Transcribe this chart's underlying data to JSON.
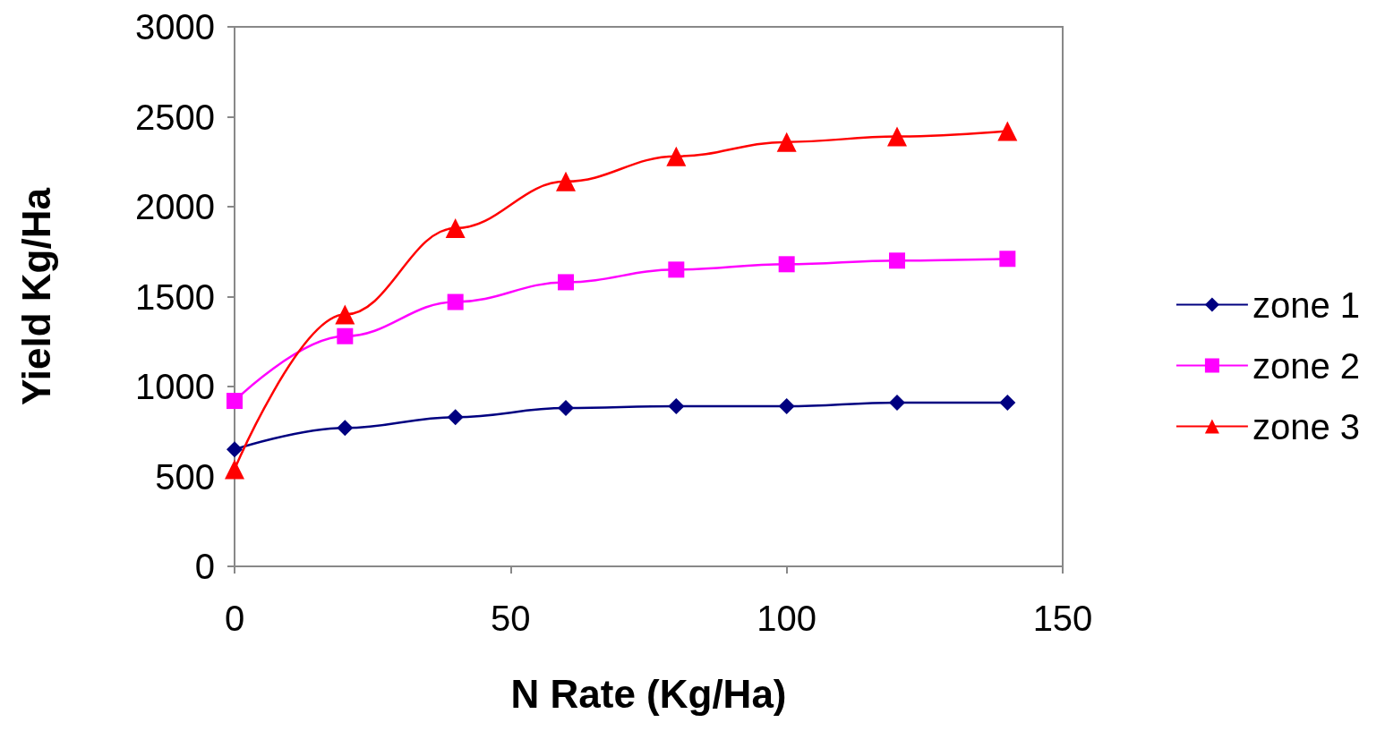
{
  "chart_data": {
    "type": "line",
    "xlabel": "N Rate (Kg/Ha)",
    "ylabel": "Yield Kg/Ha",
    "x": [
      0,
      20,
      40,
      60,
      80,
      100,
      120,
      140
    ],
    "series": [
      {
        "name": "zone 1",
        "color": "#000080",
        "marker": "diamond",
        "values": [
          650,
          770,
          830,
          880,
          890,
          890,
          910,
          910
        ]
      },
      {
        "name": "zone 2",
        "color": "#ff00ff",
        "marker": "square",
        "values": [
          920,
          1280,
          1470,
          1580,
          1650,
          1680,
          1700,
          1710
        ]
      },
      {
        "name": "zone 3",
        "color": "#ff0000",
        "marker": "triangle",
        "values": [
          540,
          1400,
          1880,
          2140,
          2280,
          2360,
          2390,
          2420
        ]
      }
    ],
    "xlim": [
      0,
      150
    ],
    "xticks": [
      0,
      50,
      100,
      150
    ],
    "ylim": [
      0,
      3000
    ],
    "yticks": [
      0,
      500,
      1000,
      1500,
      2000,
      2500,
      3000
    ],
    "grid": false,
    "legend": "right",
    "line_style": "solid"
  }
}
